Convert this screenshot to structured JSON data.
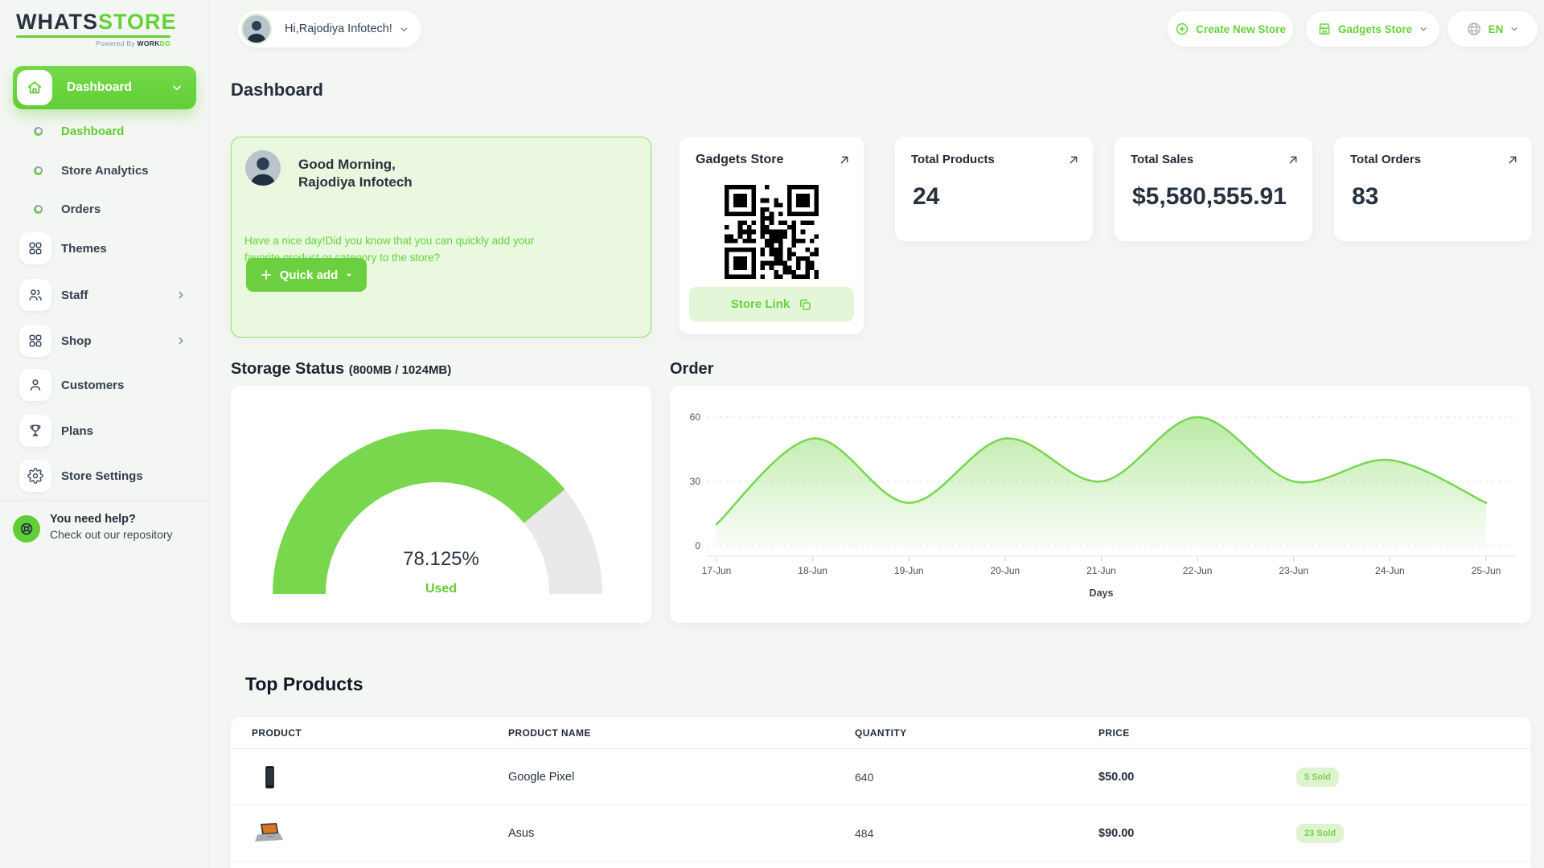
{
  "brand": {
    "name_primary": "WHATS",
    "name_secondary": "STORE",
    "powered_prefix": "Powered By ",
    "powered_dark": "WORK",
    "powered_green": "DO"
  },
  "header": {
    "profile_label": "Hi,Rajodiya Infotech!",
    "create_new_store": "Create New Store",
    "store_switcher": "Gadgets Store",
    "language": "EN"
  },
  "sidebar": {
    "group_label": "Dashboard",
    "sub_items": [
      {
        "label": "Dashboard"
      },
      {
        "label": "Store Analytics"
      },
      {
        "label": "Orders"
      }
    ],
    "items": [
      {
        "label": "Themes"
      },
      {
        "label": "Staff"
      },
      {
        "label": "Shop"
      },
      {
        "label": "Customers"
      },
      {
        "label": "Plans"
      },
      {
        "label": "Store Settings"
      }
    ],
    "help_title": "You need help?",
    "help_subtitle": "Check out our repository"
  },
  "page": {
    "title": "Dashboard"
  },
  "greeting": {
    "line1": "Good Morning,",
    "line2": "Rajodiya Infotech",
    "message": "Have a nice day!Did you know that you can quickly add your favorite product or category to the store?",
    "quick_add_label": "Quick add"
  },
  "store_card": {
    "title": "Gadgets Store",
    "link_label": "Store Link"
  },
  "stats": [
    {
      "label": "Total Products",
      "value": "24"
    },
    {
      "label": "Total Sales",
      "value": "$5,580,555.91"
    },
    {
      "label": "Total Orders",
      "value": "83"
    }
  ],
  "storage": {
    "title": "Storage Status",
    "usage": "(800MB / 1024MB)",
    "percent_label": "78.125%",
    "used_label": "Used"
  },
  "order": {
    "title": "Order"
  },
  "top_products": {
    "title": "Top Products",
    "columns": [
      "PRODUCT",
      "PRODUCT NAME",
      "QUANTITY",
      "PRICE"
    ],
    "rows": [
      {
        "name": "Google Pixel",
        "quantity": "640",
        "price": "$50.00",
        "sold_badge": "5 Sold"
      },
      {
        "name": "Asus",
        "quantity": "484",
        "price": "$90.00",
        "sold_badge": "23 Sold"
      }
    ]
  },
  "chart_data": [
    {
      "type": "gauge",
      "title": "Storage Status (800MB / 1024MB)",
      "value": 78.125,
      "max": 100,
      "unit": "%",
      "label": "Used",
      "color": "#79d74e",
      "track_color": "#e9e9e9"
    },
    {
      "type": "area",
      "title": "Order",
      "x": [
        "17-Jun",
        "18-Jun",
        "19-Jun",
        "20-Jun",
        "21-Jun",
        "22-Jun",
        "23-Jun",
        "24-Jun",
        "25-Jun"
      ],
      "values": [
        10,
        50,
        20,
        50,
        30,
        60,
        30,
        40,
        20
      ],
      "xlabel": "Days",
      "ylabel": "",
      "yticks": [
        0,
        30,
        60
      ],
      "ylim": [
        0,
        66
      ],
      "grid": "horizontal-dashed",
      "legend": false,
      "smooth": true,
      "line_color": "#77d64e",
      "fill": "vertical green gradient"
    }
  ],
  "colors": {
    "primary_green": "#6fd345",
    "green_text": "#67d23a",
    "light_green_card": "#e9f8df",
    "light_green_border": "#8ee263",
    "light_green_button": "#e4f6d8",
    "badge_bg": "#def4cf",
    "badge_text": "#79cf51",
    "dark_text": "#263241",
    "page_bg": "#f4f6f3",
    "card_bg": "#ffffff",
    "gauge_track": "#e9e9e9"
  },
  "icons": {
    "sidebar_group": "home",
    "stat_corner": "arrow-up-right",
    "store_link": "copy",
    "help": "life-buoy",
    "language": "globe",
    "create": "plus-circle",
    "store_switcher": "storefront"
  }
}
